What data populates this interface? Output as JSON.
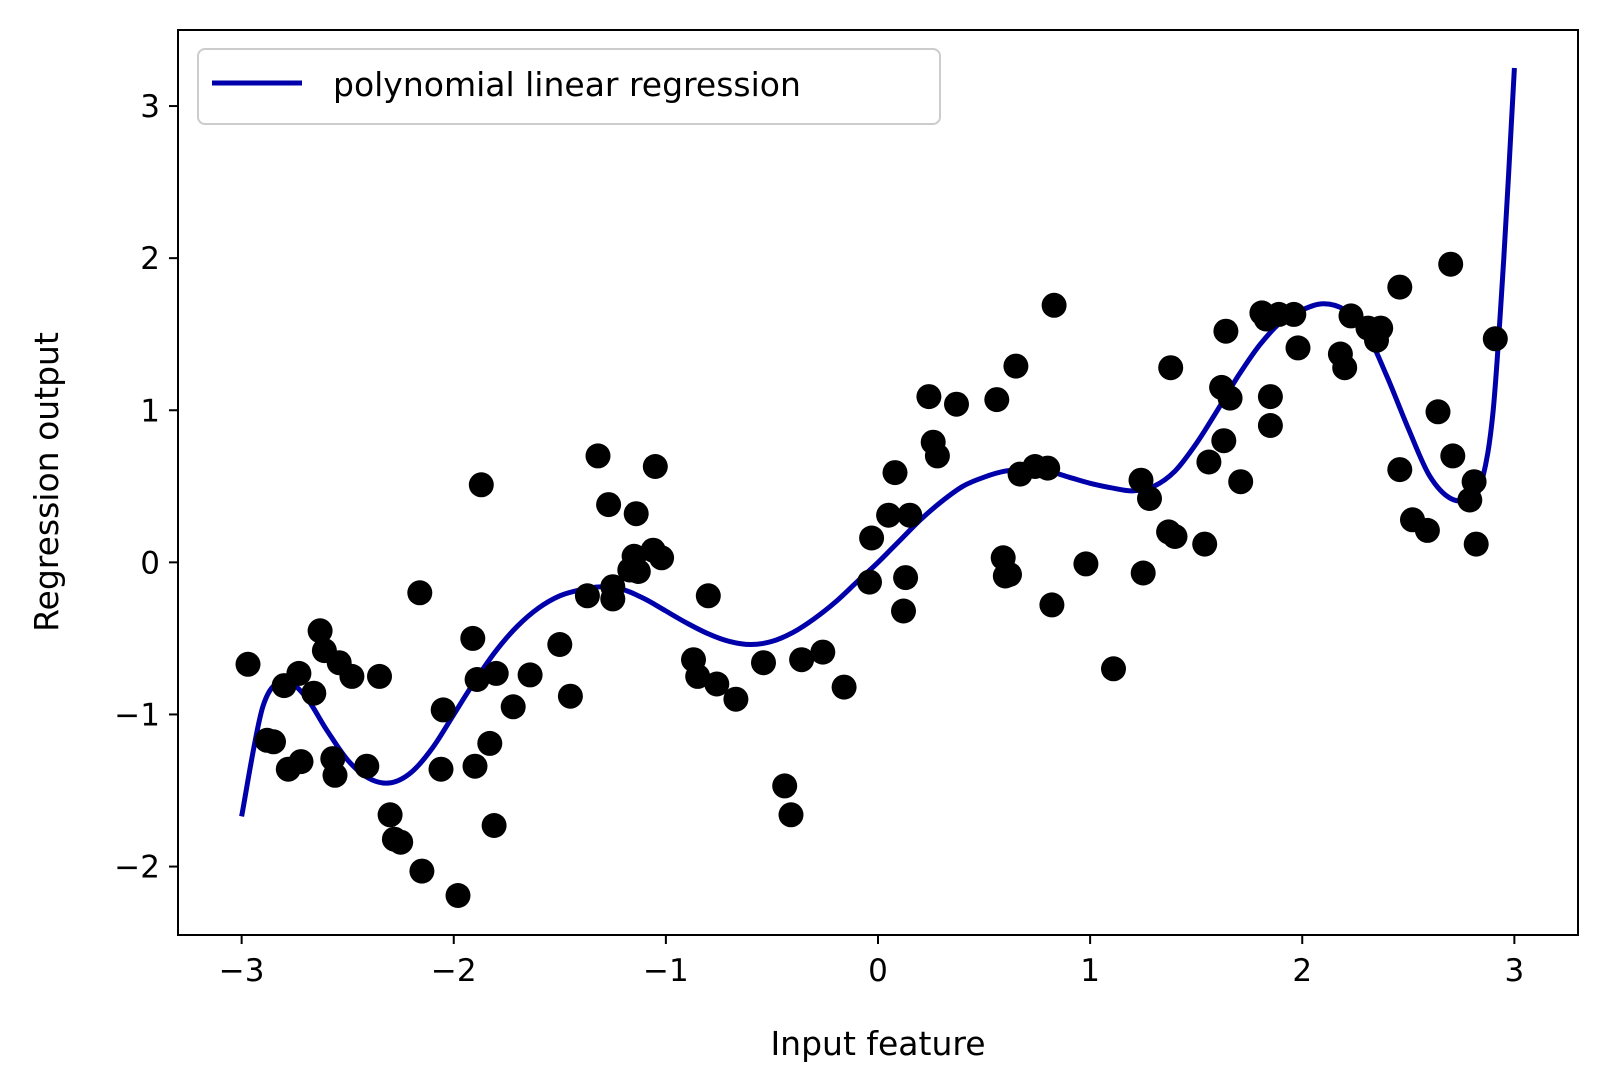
{
  "chart_data": {
    "type": "scatter",
    "title": "",
    "xlabel": "Input feature",
    "ylabel": "Regression output",
    "xlim": [
      -3.3,
      3.3
    ],
    "ylim": [
      -2.45,
      3.5
    ],
    "xticks": [
      -3,
      -2,
      -1,
      0,
      1,
      2,
      3
    ],
    "xtick_labels": [
      "−3",
      "−2",
      "−1",
      "0",
      "1",
      "2",
      "3"
    ],
    "yticks": [
      -2,
      -1,
      0,
      1,
      2,
      3
    ],
    "ytick_labels": [
      "−2",
      "−1",
      "0",
      "1",
      "2",
      "3"
    ],
    "grid": false,
    "legend": {
      "position": "top-left",
      "entries": [
        "polynomial linear regression"
      ]
    },
    "colors": {
      "line": "#0000aa",
      "points": "#000000"
    },
    "series": [
      {
        "name": "polynomial linear regression",
        "kind": "line",
        "x": [
          -3.0,
          -2.9,
          -2.8,
          -2.7,
          -2.6,
          -2.5,
          -2.4,
          -2.3,
          -2.2,
          -2.1,
          -2.0,
          -1.9,
          -1.8,
          -1.7,
          -1.6,
          -1.5,
          -1.4,
          -1.3,
          -1.2,
          -1.1,
          -1.0,
          -0.9,
          -0.8,
          -0.7,
          -0.6,
          -0.5,
          -0.4,
          -0.3,
          -0.2,
          -0.1,
          0.0,
          0.1,
          0.2,
          0.3,
          0.4,
          0.5,
          0.6,
          0.7,
          0.8,
          0.9,
          1.0,
          1.1,
          1.2,
          1.3,
          1.4,
          1.5,
          1.6,
          1.7,
          1.8,
          1.9,
          2.0,
          2.1,
          2.2,
          2.3,
          2.4,
          2.5,
          2.6,
          2.7,
          2.8,
          2.85,
          2.9,
          2.95,
          3.0
        ],
        "y": [
          -1.67,
          -0.95,
          -0.78,
          -0.88,
          -1.1,
          -1.3,
          -1.42,
          -1.45,
          -1.38,
          -1.22,
          -1.0,
          -0.78,
          -0.58,
          -0.42,
          -0.3,
          -0.22,
          -0.18,
          -0.16,
          -0.18,
          -0.24,
          -0.32,
          -0.4,
          -0.47,
          -0.52,
          -0.54,
          -0.52,
          -0.46,
          -0.37,
          -0.26,
          -0.13,
          0.0,
          0.14,
          0.28,
          0.4,
          0.5,
          0.56,
          0.6,
          0.61,
          0.6,
          0.56,
          0.52,
          0.49,
          0.47,
          0.5,
          0.6,
          0.78,
          1.0,
          1.23,
          1.43,
          1.58,
          1.66,
          1.7,
          1.66,
          1.52,
          1.22,
          0.88,
          0.57,
          0.42,
          0.42,
          0.55,
          1.0,
          2.0,
          3.25
        ]
      },
      {
        "name": "",
        "kind": "scatter",
        "x": [
          -2.97,
          -2.88,
          -2.85,
          -2.8,
          -2.78,
          -2.73,
          -2.72,
          -2.66,
          -2.63,
          -2.61,
          -2.57,
          -2.56,
          -2.54,
          -2.48,
          -2.41,
          -2.35,
          -2.3,
          -2.28,
          -2.25,
          -2.16,
          -2.15,
          -2.05,
          -2.06,
          -1.98,
          -1.91,
          -1.9,
          -1.89,
          -1.87,
          -1.83,
          -1.81,
          -1.8,
          -1.72,
          -1.64,
          -1.5,
          -1.45,
          -1.37,
          -1.32,
          -1.27,
          -1.25,
          -1.25,
          -1.17,
          -1.15,
          -1.14,
          -1.13,
          -1.06,
          -1.05,
          -1.02,
          -0.87,
          -0.85,
          -0.8,
          -0.76,
          -0.67,
          -0.54,
          -0.44,
          -0.41,
          -0.36,
          -0.26,
          -0.16,
          -0.04,
          -0.03,
          0.05,
          0.08,
          0.12,
          0.13,
          0.15,
          0.24,
          0.26,
          0.28,
          0.37,
          0.56,
          0.59,
          0.6,
          0.62,
          0.65,
          0.67,
          0.74,
          0.8,
          0.82,
          0.83,
          0.98,
          1.11,
          1.24,
          1.25,
          1.28,
          1.37,
          1.38,
          1.4,
          1.54,
          1.56,
          1.62,
          1.63,
          1.64,
          1.66,
          1.71,
          1.81,
          1.83,
          1.85,
          1.85,
          1.89,
          1.96,
          1.98,
          2.18,
          2.2,
          2.23,
          2.31,
          2.35,
          2.37,
          2.46,
          2.46,
          2.52,
          2.59,
          2.64,
          2.7,
          2.71,
          2.79,
          2.81,
          2.82,
          2.91
        ],
        "y": [
          -0.67,
          -1.17,
          -1.18,
          -0.81,
          -1.36,
          -0.73,
          -1.31,
          -0.86,
          -0.45,
          -0.58,
          -1.29,
          -1.4,
          -0.66,
          -0.75,
          -1.34,
          -0.75,
          -1.66,
          -1.82,
          -1.84,
          -0.2,
          -2.03,
          -0.97,
          -1.36,
          -2.19,
          -0.5,
          -1.34,
          -0.77,
          0.51,
          -1.19,
          -1.73,
          -0.73,
          -0.95,
          -0.74,
          -0.54,
          -0.88,
          -0.22,
          0.7,
          0.38,
          -0.16,
          -0.24,
          -0.05,
          0.04,
          0.32,
          -0.06,
          0.08,
          0.63,
          0.03,
          -0.64,
          -0.75,
          -0.22,
          -0.8,
          -0.9,
          -0.66,
          -1.47,
          -1.66,
          -0.64,
          -0.59,
          -0.82,
          -0.13,
          0.16,
          0.31,
          0.59,
          -0.32,
          -0.1,
          0.31,
          1.09,
          0.79,
          0.7,
          1.04,
          1.07,
          0.03,
          -0.09,
          -0.08,
          1.29,
          0.58,
          0.63,
          0.62,
          -0.28,
          1.69,
          -0.01,
          -0.7,
          0.54,
          -0.07,
          0.42,
          0.2,
          1.28,
          0.17,
          0.12,
          0.66,
          1.15,
          0.8,
          1.52,
          1.08,
          0.53,
          1.64,
          1.6,
          0.9,
          1.09,
          1.63,
          1.63,
          1.41,
          1.37,
          1.28,
          1.62,
          1.54,
          1.46,
          1.54,
          1.81,
          0.61,
          0.28,
          0.21,
          0.99,
          1.96,
          0.7,
          0.41,
          0.53,
          0.12,
          1.47
        ]
      }
    ]
  }
}
